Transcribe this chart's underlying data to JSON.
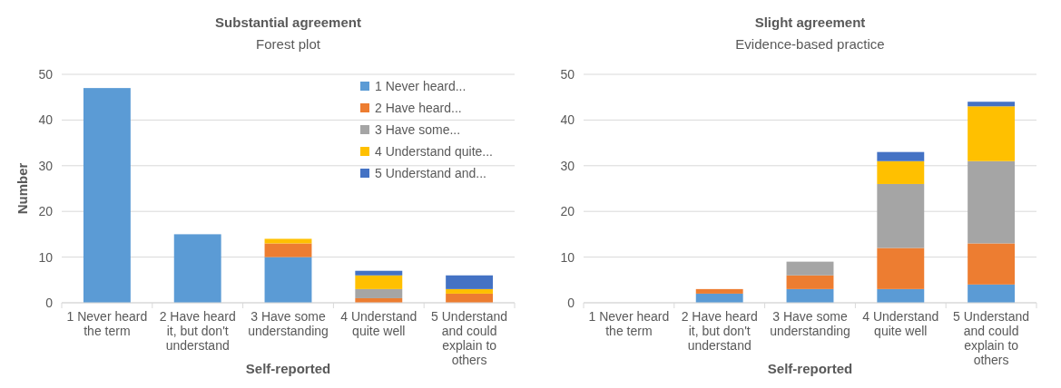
{
  "chart_data": [
    {
      "type": "bar",
      "stacked": true,
      "title": "Substantial agreement",
      "subtitle": "Forest plot",
      "xlabel": "Self-reported",
      "ylabel": "Number",
      "categories": [
        "1 Never heard the term",
        "2 Have heard it, but don't understand",
        "3 Have some understanding",
        "4 Understand quite well",
        "5 Understand and could explain to others"
      ],
      "ylim": [
        0,
        50
      ],
      "yticks": [
        0,
        10,
        20,
        30,
        40,
        50
      ],
      "grid": "y",
      "legend": "top right",
      "series": [
        {
          "name": "1 Never heard...",
          "color": "#5b9bd5",
          "values": [
            47,
            15,
            10,
            0,
            0
          ]
        },
        {
          "name": "2 Have heard...",
          "color": "#ed7d31",
          "values": [
            0,
            0,
            3,
            1,
            2
          ]
        },
        {
          "name": "3 Have some...",
          "color": "#a5a5a5",
          "values": [
            0,
            0,
            0,
            2,
            0
          ]
        },
        {
          "name": "4 Understand quite...",
          "color": "#ffc000",
          "values": [
            0,
            0,
            1,
            3,
            1
          ]
        },
        {
          "name": "5 Understand and...",
          "color": "#4472c4",
          "values": [
            0,
            0,
            0,
            1,
            3
          ]
        }
      ]
    },
    {
      "type": "bar",
      "stacked": true,
      "title": "Slight agreement",
      "subtitle": "Evidence-based practice",
      "xlabel": "Self-reported",
      "categories": [
        "1 Never heard the term",
        "2 Have heard it, but don't understand",
        "3 Have some understanding",
        "4 Understand quite well",
        "5 Understand and could explain to others"
      ],
      "ylim": [
        0,
        50
      ],
      "yticks": [
        0,
        10,
        20,
        30,
        40,
        50
      ],
      "grid": "y",
      "series": [
        {
          "color": "#5b9bd5",
          "values": [
            0,
            2,
            3,
            3,
            4
          ]
        },
        {
          "color": "#ed7d31",
          "values": [
            0,
            1,
            3,
            9,
            9
          ]
        },
        {
          "color": "#a5a5a5",
          "values": [
            0,
            0,
            3,
            14,
            18
          ]
        },
        {
          "color": "#ffc000",
          "values": [
            0,
            0,
            0,
            5,
            12
          ]
        },
        {
          "color": "#4472c4",
          "values": [
            0,
            0,
            0,
            2,
            1
          ]
        }
      ]
    }
  ]
}
